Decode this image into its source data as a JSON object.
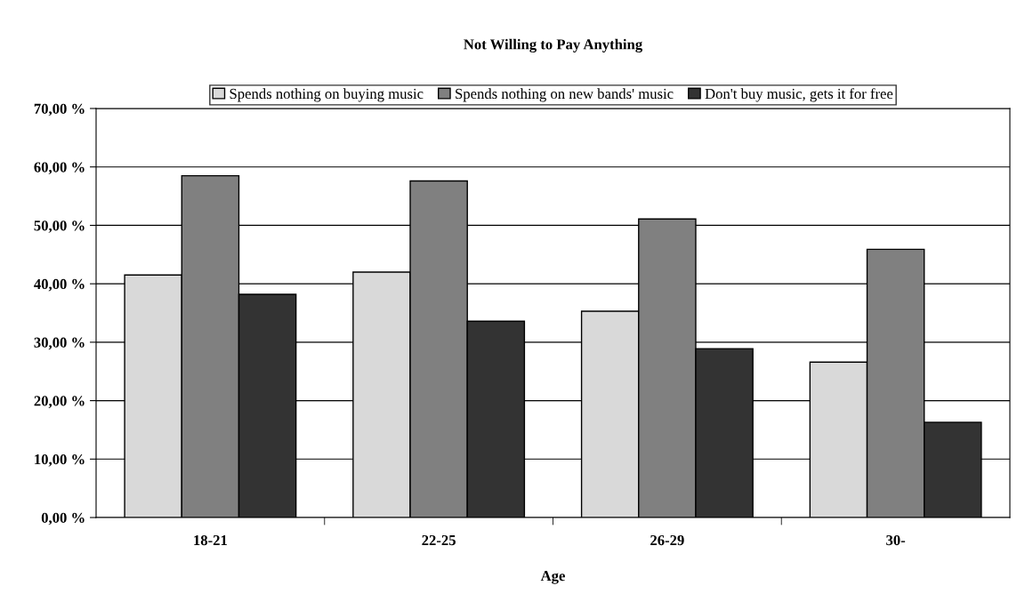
{
  "chart_data": {
    "type": "bar",
    "title": "Not Willing to Pay Anything",
    "xlabel": "Age",
    "categories": [
      "18-21",
      "22-25",
      "26-29",
      "30-"
    ],
    "series": [
      {
        "name": "Spends nothing on buying music",
        "color": "#d9d9d9",
        "values": [
          41.5,
          42.0,
          35.3,
          26.6
        ]
      },
      {
        "name": "Spends nothing on new bands' music",
        "color": "#808080",
        "values": [
          58.5,
          57.6,
          51.1,
          45.9
        ]
      },
      {
        "name": "Don't buy music, gets it for free",
        "color": "#333333",
        "values": [
          38.2,
          33.6,
          28.9,
          16.3
        ]
      }
    ],
    "ylim": [
      0,
      70
    ],
    "yticks": [
      {
        "value": 0,
        "label": "0,00 %"
      },
      {
        "value": 10,
        "label": "10,00 %"
      },
      {
        "value": 20,
        "label": "20,00 %"
      },
      {
        "value": 30,
        "label": "30,00 %"
      },
      {
        "value": 40,
        "label": "40,00 %"
      },
      {
        "value": 50,
        "label": "50,00 %"
      },
      {
        "value": 60,
        "label": "60,00 %"
      },
      {
        "value": 70,
        "label": "70,00 %"
      }
    ],
    "grid": "y",
    "legend": "top"
  }
}
